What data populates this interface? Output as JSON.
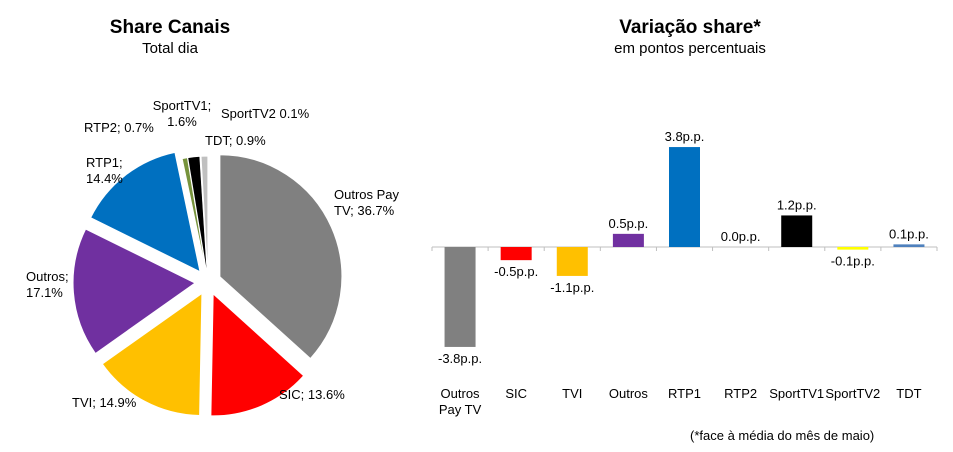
{
  "chart_data": [
    {
      "type": "pie",
      "title": "Share Canais",
      "subtitle": "Total dia",
      "slices": [
        {
          "name": "Outros Pay TV",
          "value": 36.7,
          "label": "Outros Pay\nTV; 36.7%",
          "color": "#808080"
        },
        {
          "name": "SIC",
          "value": 13.6,
          "label": "SIC; 13.6%",
          "color": "#ff0000"
        },
        {
          "name": "TVI",
          "value": 14.9,
          "label": "TVI; 14.9%",
          "color": "#ffc000"
        },
        {
          "name": "Outros",
          "value": 17.1,
          "label": "Outros;\n17.1%",
          "color": "#7030a0"
        },
        {
          "name": "RTP1",
          "value": 14.4,
          "label": "RTP1;\n14.4%",
          "color": "#0070c0"
        },
        {
          "name": "RTP2",
          "value": 0.7,
          "label": "RTP2; 0.7%",
          "color": "#77933c"
        },
        {
          "name": "SportTV1",
          "value": 1.6,
          "label": "SportTV1;\n1.6%",
          "color": "#000000"
        },
        {
          "name": "SportTV2",
          "value": 0.1,
          "label": "SportTV2 0.1%",
          "color": "#ffff00"
        },
        {
          "name": "TDT",
          "value": 0.9,
          "label": "TDT; 0.9%",
          "color": "#c0c0c0"
        }
      ]
    },
    {
      "type": "bar",
      "title": "Variação share*",
      "subtitle": "em pontos percentuais",
      "categories": [
        "Outros\nPay TV",
        "SIC",
        "TVI",
        "Outros",
        "RTP1",
        "RTP2",
        "SportTV1",
        "SportTV2",
        "TDT"
      ],
      "values": [
        -3.8,
        -0.5,
        -1.1,
        0.5,
        3.8,
        0.0,
        1.2,
        -0.1,
        0.1
      ],
      "value_labels": [
        "-3.8p.p.",
        "-0.5p.p.",
        "-1.1p.p.",
        "0.5p.p.",
        "3.8p.p.",
        "0.0p.p.",
        "1.2p.p.",
        "-0.1p.p.",
        "0.1p.p."
      ],
      "colors": [
        "#808080",
        "#ff0000",
        "#ffc000",
        "#7030a0",
        "#0070c0",
        "#77933c",
        "#000000",
        "#ffff00",
        "#4f81bd"
      ],
      "footnote": "(*face à média do mês de maio)"
    }
  ]
}
